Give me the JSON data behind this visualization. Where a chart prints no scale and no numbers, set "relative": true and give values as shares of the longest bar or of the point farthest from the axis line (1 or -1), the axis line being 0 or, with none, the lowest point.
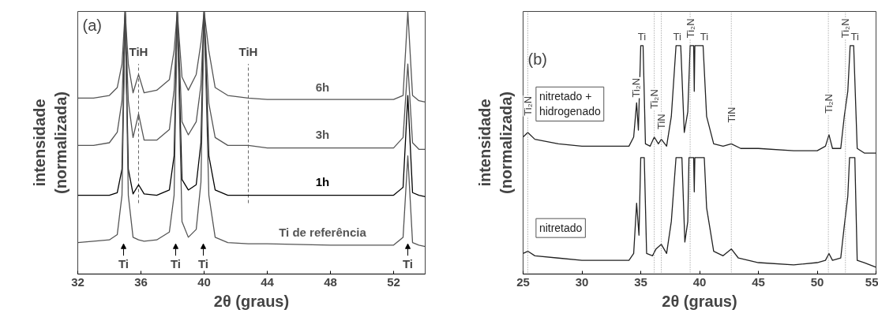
{
  "chart_data": [
    {
      "type": "line",
      "relative": true,
      "title": "(a)",
      "xlabel": "2θ (graus)",
      "ylabel": "intensidade\n(normalizada)",
      "xlim": [
        32,
        54
      ],
      "xticks": [
        32,
        36,
        40,
        44,
        48,
        52
      ],
      "tick_labels": "x",
      "legend": false,
      "grid": false,
      "x": [
        32,
        33,
        34,
        34.5,
        34.8,
        35.0,
        35.2,
        35.5,
        35.85,
        36.2,
        37,
        37.8,
        38.1,
        38.3,
        38.6,
        39.0,
        39.5,
        39.8,
        40.0,
        40.3,
        40.7,
        41.5,
        42.8,
        44,
        48,
        52,
        52.6,
        52.9,
        53.2,
        53.6,
        54
      ],
      "series": [
        {
          "name": "6h",
          "color": "#555555",
          "values": [
            0.67,
            0.67,
            0.68,
            0.71,
            0.8,
            1.0,
            0.8,
            0.69,
            0.76,
            0.69,
            0.7,
            0.74,
            0.85,
            1.0,
            0.75,
            0.7,
            0.76,
            0.88,
            1.0,
            0.85,
            0.71,
            0.68,
            0.67,
            0.665,
            0.665,
            0.665,
            0.68,
            1.0,
            0.68,
            0.66,
            0.655
          ]
        },
        {
          "name": "3h",
          "color": "#555555",
          "values": [
            0.49,
            0.49,
            0.5,
            0.54,
            0.66,
            1.0,
            0.66,
            0.52,
            0.61,
            0.51,
            0.51,
            0.55,
            0.7,
            1.0,
            0.58,
            0.53,
            0.58,
            0.72,
            1.0,
            0.65,
            0.52,
            0.49,
            0.49,
            0.48,
            0.48,
            0.48,
            0.52,
            0.8,
            0.5,
            0.475,
            0.475
          ]
        },
        {
          "name": "1h",
          "color": "#000000",
          "values": [
            0.3,
            0.3,
            0.3,
            0.31,
            0.4,
            1.0,
            0.4,
            0.305,
            0.34,
            0.305,
            0.3,
            0.32,
            0.45,
            1.0,
            0.36,
            0.32,
            0.34,
            0.5,
            1.0,
            0.45,
            0.32,
            0.3,
            0.3,
            0.3,
            0.3,
            0.3,
            0.33,
            0.68,
            0.31,
            0.3,
            0.295
          ]
        },
        {
          "name": "Ti de referência",
          "color": "#555555",
          "values": [
            0.12,
            0.125,
            0.13,
            0.15,
            0.3,
            1.0,
            0.3,
            0.14,
            0.13,
            0.125,
            0.13,
            0.16,
            0.3,
            1.0,
            0.2,
            0.14,
            0.17,
            0.35,
            1.0,
            0.3,
            0.14,
            0.12,
            0.115,
            0.115,
            0.11,
            0.11,
            0.14,
            0.45,
            0.12,
            0.11,
            0.105
          ]
        }
      ],
      "ref_lines": [
        {
          "axis": "x",
          "value": 35.85,
          "line_style": "dashed",
          "color": "#666666"
        },
        {
          "axis": "x",
          "value": 42.8,
          "line_style": "dashed",
          "color": "#666666"
        }
      ],
      "annotations": [
        "TiH",
        "TiH",
        "Ti",
        "Ti",
        "Ti",
        "Ti"
      ]
    },
    {
      "type": "line",
      "relative": true,
      "title": "(b)",
      "xlabel": "2θ (graus)",
      "ylabel": "intensidade\n(normalizada)",
      "xlim": [
        25,
        55
      ],
      "xticks": [
        25,
        30,
        35,
        40,
        45,
        50,
        55
      ],
      "tick_labels": "x",
      "legend": false,
      "grid": false,
      "series": [
        {
          "name": "nitretado +\nhidrogenado",
          "color": "#222222",
          "x": [
            25,
            25.4,
            26,
            28,
            30,
            32,
            34,
            34.4,
            34.65,
            34.8,
            35.0,
            35.2,
            35.4,
            35.8,
            36.15,
            36.5,
            36.75,
            37.2,
            37.6,
            38.0,
            38.4,
            38.7,
            39.0,
            39.2,
            39.5,
            39.55,
            39.6,
            40.3,
            40.6,
            41.2,
            42.0,
            42.7,
            43.5,
            45,
            48,
            50,
            50.7,
            51.0,
            51.3,
            52.0,
            52.3,
            52.6,
            52.8,
            53.1,
            53.4,
            54,
            55
          ],
          "values": [
            0.6,
            0.62,
            0.59,
            0.57,
            0.56,
            0.56,
            0.56,
            0.6,
            0.75,
            0.63,
            1.0,
            1.0,
            0.57,
            0.56,
            0.6,
            0.57,
            0.59,
            0.56,
            0.69,
            1.0,
            1.0,
            0.62,
            0.71,
            1.0,
            1.0,
            0.8,
            1.0,
            1.0,
            0.69,
            0.57,
            0.56,
            0.57,
            0.55,
            0.55,
            0.54,
            0.54,
            0.56,
            0.61,
            0.55,
            0.55,
            0.69,
            0.8,
            1.0,
            1.0,
            0.55,
            0.53,
            0.53
          ]
        },
        {
          "name": "nitretado",
          "color": "#222222",
          "x": [
            25,
            25.4,
            26,
            28,
            30,
            32,
            34,
            34.4,
            34.65,
            34.85,
            35.0,
            35.3,
            35.5,
            36.0,
            36.3,
            36.75,
            37.2,
            37.6,
            38.0,
            38.5,
            38.75,
            39.0,
            39.1,
            39.5,
            39.55,
            39.6,
            40.4,
            40.6,
            41.2,
            42.0,
            42.7,
            43.3,
            45,
            48,
            50,
            50.7,
            51.0,
            51.3,
            52.0,
            52.3,
            52.6,
            52.75,
            53.2,
            53.4,
            54,
            55
          ],
          "values": [
            0.09,
            0.1,
            0.08,
            0.07,
            0.06,
            0.06,
            0.06,
            0.09,
            0.31,
            0.17,
            0.51,
            0.51,
            0.09,
            0.08,
            0.11,
            0.13,
            0.09,
            0.23,
            0.51,
            0.51,
            0.14,
            0.23,
            0.51,
            0.51,
            0.36,
            0.51,
            0.51,
            0.29,
            0.1,
            0.08,
            0.11,
            0.07,
            0.05,
            0.04,
            0.05,
            0.06,
            0.09,
            0.06,
            0.07,
            0.21,
            0.34,
            0.51,
            0.51,
            0.06,
            0.05,
            0.03
          ]
        }
      ],
      "ref_lines": [
        {
          "axis": "x",
          "value": 25.4,
          "line_style": "dotted",
          "color": "#888888"
        },
        {
          "axis": "x",
          "value": 36.15,
          "line_style": "dotted",
          "color": "#888888"
        },
        {
          "axis": "x",
          "value": 36.75,
          "line_style": "dotted",
          "color": "#888888"
        },
        {
          "axis": "x",
          "value": 39.2,
          "line_style": "dotted",
          "color": "#888888"
        },
        {
          "axis": "x",
          "value": 42.7,
          "line_style": "dotted",
          "color": "#888888"
        },
        {
          "axis": "x",
          "value": 50.95,
          "line_style": "dotted",
          "color": "#888888"
        },
        {
          "axis": "x",
          "value": 52.4,
          "line_style": "dotted",
          "color": "#888888"
        }
      ],
      "annotations": [
        "Ti₂N",
        "Ti₂N",
        "Ti",
        "Ti₂N",
        "TiN",
        "Ti",
        "Ti₂N",
        "Ti",
        "TiN",
        "Ti₂N",
        "Ti₂N",
        "Ti"
      ]
    }
  ]
}
